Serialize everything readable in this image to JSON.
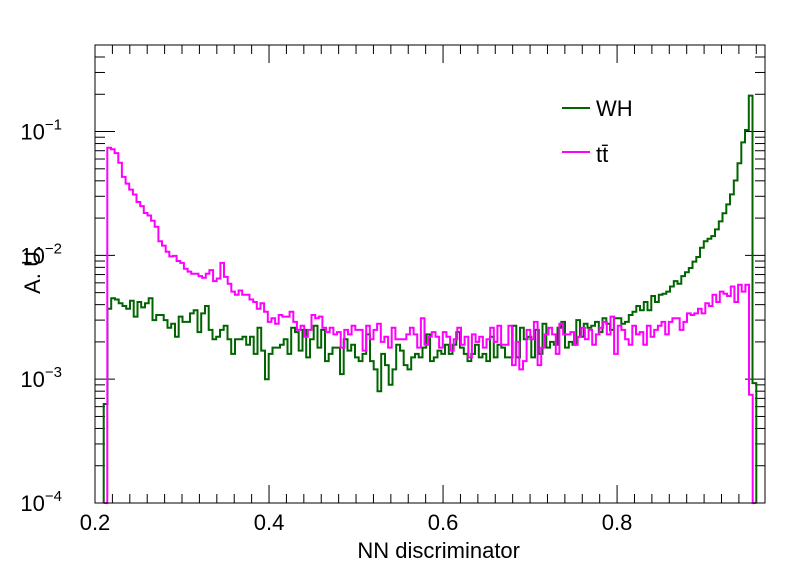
{
  "chart_data": {
    "type": "line",
    "style": "step-histogram",
    "yscale": "log",
    "title": "",
    "xlabel": "NN discriminator",
    "ylabel": "A. U.",
    "xlim": [
      0.2,
      0.97
    ],
    "ylim": [
      0.0001,
      0.5
    ],
    "x_ticks": [
      0.2,
      0.4,
      0.6,
      0.8
    ],
    "x_tick_labels": [
      "0.2",
      "0.4",
      "0.6",
      "0.8"
    ],
    "y_ticks": [
      0.0001,
      0.001,
      0.01,
      0.1
    ],
    "y_tick_base": [
      "10",
      "10",
      "10",
      "10"
    ],
    "y_tick_exp": [
      "−4",
      "−3",
      "−2",
      "−1"
    ],
    "legend_position": "top-right",
    "bin_range": [
      0.21,
      0.96
    ],
    "series": [
      {
        "name": "WH",
        "color": "#006400",
        "values": [
          0.00063,
          0.0037,
          0.0045,
          0.0044,
          0.0041,
          0.0039,
          0.0037,
          0.0043,
          0.0032,
          0.0042,
          0.0038,
          0.0041,
          0.0045,
          0.003,
          0.0033,
          0.0033,
          0.003,
          0.0026,
          0.0028,
          0.0022,
          0.0032,
          0.0029,
          0.0029,
          0.0034,
          0.0036,
          0.0024,
          0.0034,
          0.0039,
          0.0025,
          0.0021,
          0.0022,
          0.0025,
          0.0027,
          0.0021,
          0.0016,
          0.0021,
          0.0021,
          0.0022,
          0.0019,
          0.0022,
          0.0016,
          0.0026,
          0.0017,
          0.001,
          0.0016,
          0.0018,
          0.0018,
          0.0019,
          0.0021,
          0.0016,
          0.0026,
          0.0024,
          0.0017,
          0.0025,
          0.0015,
          0.0021,
          0.0027,
          0.0018,
          0.0025,
          0.0014,
          0.0016,
          0.0018,
          0.0018,
          0.0011,
          0.0021,
          0.0017,
          0.0019,
          0.0015,
          0.0014,
          0.0016,
          0.0023,
          0.0014,
          0.0012,
          0.0008,
          0.0016,
          0.0013,
          0.0009,
          0.0012,
          0.0019,
          0.0017,
          0.0013,
          0.0012,
          0.0015,
          0.0016,
          0.0015,
          0.0018,
          0.0023,
          0.0014,
          0.0015,
          0.0017,
          0.0016,
          0.0019,
          0.0016,
          0.0019,
          0.0024,
          0.0018,
          0.0016,
          0.0014,
          0.0016,
          0.0019,
          0.0015,
          0.0016,
          0.0014,
          0.0022,
          0.0015,
          0.0019,
          0.0018,
          0.0015,
          0.0015,
          0.0027,
          0.0015,
          0.0026,
          0.0021,
          0.0022,
          0.0015,
          0.0025,
          0.0016,
          0.0028,
          0.0018,
          0.002,
          0.0019,
          0.0026,
          0.0029,
          0.0018,
          0.002,
          0.0019,
          0.003,
          0.0022,
          0.0028,
          0.0026,
          0.0027,
          0.0029,
          0.0024,
          0.0031,
          0.0028,
          0.0025,
          0.0031,
          0.0031,
          0.0028,
          0.0029,
          0.0033,
          0.0035,
          0.0039,
          0.0036,
          0.0042,
          0.0036,
          0.0047,
          0.0042,
          0.0048,
          0.0049,
          0.0051,
          0.0056,
          0.0062,
          0.0059,
          0.0068,
          0.0073,
          0.0079,
          0.0089,
          0.0097,
          0.0115,
          0.013,
          0.0136,
          0.0143,
          0.0162,
          0.0188,
          0.0219,
          0.0258,
          0.0311,
          0.0402,
          0.0555,
          0.0817,
          0.103,
          0.195,
          0.00093
        ]
      },
      {
        "name": "tt̄",
        "color": "#ff00ff",
        "values": [
          0.0001,
          0.074,
          0.072,
          0.067,
          0.056,
          0.043,
          0.038,
          0.034,
          0.031,
          0.027,
          0.025,
          0.022,
          0.021,
          0.019,
          0.017,
          0.013,
          0.012,
          0.0107,
          0.0098,
          0.0099,
          0.009,
          0.0087,
          0.0078,
          0.0074,
          0.0071,
          0.0071,
          0.0068,
          0.0066,
          0.0071,
          0.0076,
          0.0062,
          0.0065,
          0.0087,
          0.0067,
          0.0059,
          0.0051,
          0.0048,
          0.0052,
          0.0048,
          0.0048,
          0.0044,
          0.0042,
          0.0037,
          0.0041,
          0.0035,
          0.0029,
          0.0031,
          0.0028,
          0.0033,
          0.0032,
          0.0032,
          0.0035,
          0.0029,
          0.0025,
          0.0027,
          0.0022,
          0.0025,
          0.0033,
          0.0031,
          0.0032,
          0.0026,
          0.0024,
          0.0026,
          0.0023,
          0.0024,
          0.0018,
          0.0025,
          0.0023,
          0.0027,
          0.0025,
          0.0025,
          0.0017,
          0.0027,
          0.0021,
          0.0025,
          0.0028,
          0.002,
          0.0022,
          0.0018,
          0.0026,
          0.0021,
          0.0021,
          0.0021,
          0.0023,
          0.0026,
          0.0023,
          0.0018,
          0.0031,
          0.0019,
          0.0022,
          0.0024,
          0.0022,
          0.0018,
          0.0024,
          0.0022,
          0.0017,
          0.0021,
          0.0026,
          0.0019,
          0.0022,
          0.0015,
          0.0023,
          0.002,
          0.0022,
          0.0018,
          0.0021,
          0.0026,
          0.002,
          0.0027,
          0.0019,
          0.0019,
          0.0027,
          0.0013,
          0.002,
          0.0012,
          0.0014,
          0.0025,
          0.0021,
          0.0029,
          0.0013,
          0.0018,
          0.0023,
          0.0026,
          0.0023,
          0.0016,
          0.0028,
          0.0023,
          0.0023,
          0.0024,
          0.0019,
          0.0022,
          0.0026,
          0.0021,
          0.0025,
          0.0019,
          0.0023,
          0.0026,
          0.0029,
          0.0023,
          0.0032,
          0.0016,
          0.0027,
          0.0025,
          0.0021,
          0.0019,
          0.0027,
          0.0023,
          0.0024,
          0.0019,
          0.0027,
          0.0022,
          0.0025,
          0.0027,
          0.0029,
          0.0023,
          0.0029,
          0.0031,
          0.0031,
          0.0025,
          0.0029,
          0.0034,
          0.0033,
          0.0034,
          0.0037,
          0.0034,
          0.0041,
          0.0039,
          0.0048,
          0.0042,
          0.0051,
          0.0049,
          0.0047,
          0.0056,
          0.0042,
          0.0058,
          0.0051,
          0.0058,
          0.00075,
          0.0001
        ]
      }
    ]
  }
}
